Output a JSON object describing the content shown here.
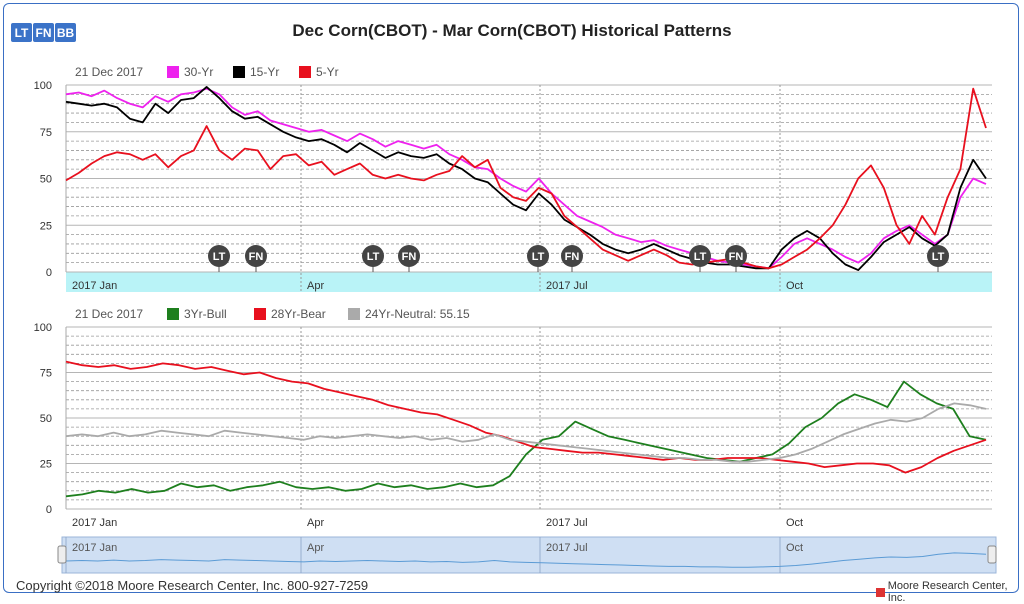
{
  "buttons": {
    "lt": "LT",
    "fn": "FN",
    "bb": "BB"
  },
  "title": "Dec Corn(CBOT) - Mar Corn(CBOT) Historical Patterns",
  "footer": {
    "copyright": "Copyright ©2018 Moore Research Center, Inc. 800-927-7259",
    "brand": "Moore Research Center, Inc."
  },
  "colors": {
    "magenta": "#ee22ee",
    "black": "#000000",
    "red": "#e8101e",
    "green": "#1e7f1e",
    "gray": "#aaaaaa",
    "band": "#b9f3f7",
    "navigator": "#cfdff3",
    "navline": "#5b9bd5"
  },
  "chart_data": [
    {
      "type": "line",
      "date_label": "21 Dec 2017",
      "ylim": [
        0,
        100
      ],
      "yticks": [
        0,
        25,
        50,
        75,
        100
      ],
      "xticks": [
        "2017 Jan",
        "Apr",
        "2017 Jul",
        "Oct"
      ],
      "markers": [
        "LT",
        "FN",
        "LT",
        "FN",
        "LT",
        "FN",
        "LT",
        "FN",
        "LT"
      ],
      "legend_position": "top-left",
      "series": [
        {
          "name": "30-Yr",
          "color": "#ee22ee",
          "values": [
            95,
            96,
            94,
            97,
            93,
            90,
            88,
            94,
            91,
            95,
            96,
            98,
            95,
            88,
            84,
            86,
            81,
            79,
            77,
            75,
            76,
            73,
            70,
            74,
            71,
            67,
            70,
            68,
            66,
            68,
            63,
            60,
            56,
            55,
            50,
            46,
            43,
            50,
            42,
            36,
            30,
            27,
            24,
            20,
            18,
            16,
            17,
            14,
            12,
            10,
            8,
            6,
            5,
            4,
            3,
            2,
            8,
            15,
            18,
            15,
            12,
            8,
            5,
            10,
            18,
            22,
            25,
            20,
            15,
            20,
            40,
            50,
            47
          ]
        },
        {
          "name": "15-Yr",
          "color": "#000000",
          "values": [
            91,
            90,
            89,
            90,
            88,
            82,
            80,
            90,
            85,
            92,
            93,
            99,
            93,
            86,
            82,
            83,
            79,
            75,
            72,
            70,
            71,
            68,
            64,
            69,
            65,
            61,
            64,
            62,
            61,
            63,
            58,
            55,
            50,
            48,
            42,
            36,
            33,
            42,
            36,
            28,
            24,
            20,
            15,
            12,
            10,
            12,
            15,
            12,
            9,
            7,
            5,
            4,
            4,
            3,
            2,
            2,
            12,
            18,
            22,
            18,
            10,
            4,
            1,
            8,
            16,
            20,
            24,
            18,
            14,
            20,
            45,
            60,
            50
          ]
        },
        {
          "name": "5-Yr",
          "color": "#e8101e",
          "values": [
            49,
            53,
            58,
            62,
            64,
            63,
            60,
            63,
            56,
            62,
            65,
            78,
            65,
            60,
            66,
            65,
            55,
            62,
            63,
            57,
            59,
            52,
            55,
            58,
            52,
            50,
            52,
            50,
            49,
            52,
            54,
            62,
            56,
            60,
            45,
            40,
            38,
            45,
            42,
            30,
            24,
            18,
            12,
            9,
            6,
            9,
            12,
            9,
            5,
            4,
            5,
            6,
            7,
            5,
            3,
            2,
            4,
            8,
            12,
            18,
            25,
            36,
            50,
            57,
            45,
            25,
            15,
            30,
            20,
            40,
            55,
            98,
            77
          ]
        }
      ]
    },
    {
      "type": "line",
      "date_label": "21 Dec 2017",
      "ylim": [
        0,
        100
      ],
      "yticks": [
        0,
        25,
        50,
        75,
        100
      ],
      "xticks": [
        "2017 Jan",
        "Apr",
        "2017 Jul",
        "Oct"
      ],
      "legend_position": "top-left",
      "series": [
        {
          "name": "3Yr-Bull",
          "color": "#1e7f1e",
          "values": [
            7,
            8,
            10,
            9,
            11,
            9,
            10,
            14,
            12,
            13,
            10,
            12,
            13,
            15,
            12,
            11,
            12,
            10,
            11,
            14,
            12,
            13,
            11,
            12,
            14,
            12,
            13,
            18,
            30,
            38,
            40,
            48,
            44,
            40,
            38,
            36,
            34,
            32,
            30,
            28,
            27,
            26,
            28,
            30,
            36,
            45,
            50,
            58,
            63,
            60,
            56,
            70,
            63,
            58,
            55,
            40,
            38
          ]
        },
        {
          "name": "28Yr-Bear",
          "color": "#e8101e",
          "values": [
            81,
            79,
            78,
            79,
            77,
            78,
            80,
            79,
            77,
            78,
            76,
            74,
            75,
            72,
            70,
            69,
            66,
            64,
            62,
            60,
            57,
            55,
            53,
            52,
            49,
            46,
            42,
            40,
            37,
            34,
            33,
            32,
            31,
            31,
            30,
            29,
            28,
            27,
            28,
            27,
            27,
            28,
            28,
            28,
            27,
            26,
            25,
            23,
            24,
            25,
            25,
            24,
            20,
            23,
            28,
            32,
            35,
            38
          ]
        },
        {
          "name": "24Yr-Neutral: 55.15",
          "color": "#aaaaaa",
          "values": [
            40,
            41,
            40,
            42,
            40,
            41,
            43,
            42,
            41,
            40,
            43,
            42,
            41,
            40,
            39,
            38,
            40,
            39,
            40,
            41,
            40,
            39,
            40,
            38,
            39,
            37,
            38,
            41,
            38,
            37,
            36,
            35,
            34,
            33,
            32,
            31,
            30,
            29,
            28,
            28,
            27,
            27,
            26,
            26,
            27,
            28,
            30,
            33,
            37,
            41,
            44,
            47,
            49,
            48,
            50,
            55,
            58,
            57,
            55
          ]
        }
      ]
    }
  ],
  "navigator": {
    "xticks": [
      "2017 Jan",
      "Apr",
      "2017 Jul",
      "Oct"
    ]
  }
}
